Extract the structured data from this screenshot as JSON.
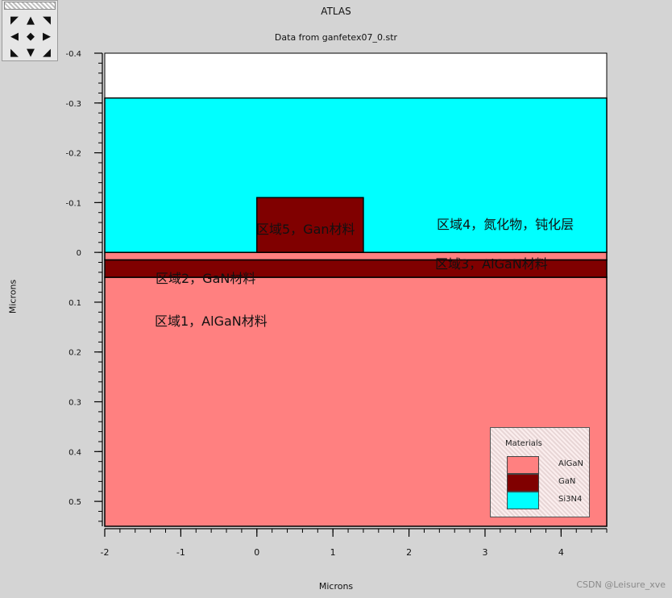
{
  "window": {
    "title": "ATLAS",
    "subtitle": "Data from ganfetex07_0.str"
  },
  "nav_icons": [
    "pan-up-left-icon",
    "pan-up-icon",
    "pan-up-right-icon",
    "pan-left-icon",
    "center-icon",
    "pan-right-icon",
    "pan-down-left-icon",
    "pan-down-icon",
    "pan-down-right-icon"
  ],
  "axes": {
    "xlabel": "Microns",
    "ylabel": "Microns",
    "x_ticks": [
      "-2",
      "-1",
      "0",
      "1",
      "2",
      "3",
      "4"
    ],
    "y_ticks": [
      "-0.4",
      "-0.3",
      "-0.2",
      "-0.1",
      "0",
      "0.1",
      "0.2",
      "0.3",
      "0.4",
      "0.5"
    ]
  },
  "colors": {
    "AlGaN": "#ff8080",
    "GaN": "#800000",
    "Si3N4": "#00ffff",
    "background": "#ffffff"
  },
  "chart_data": {
    "type": "heatmap",
    "xlim": [
      -2,
      4.6
    ],
    "ylim": [
      -0.4,
      0.55
    ],
    "y_inverted": true,
    "regions": [
      {
        "material": "AlGaN",
        "x": [
          -2,
          4.6
        ],
        "y": [
          0.05,
          0.55
        ]
      },
      {
        "material": "GaN",
        "x": [
          -2,
          4.6
        ],
        "y": [
          0.015,
          0.05
        ]
      },
      {
        "material": "AlGaN",
        "x": [
          -2,
          4.6
        ],
        "y": [
          0,
          0.015
        ]
      },
      {
        "material": "Si3N4",
        "x": [
          -2,
          4.6
        ],
        "y": [
          -0.31,
          0
        ]
      },
      {
        "material": "GaN",
        "x": [
          0,
          1.4
        ],
        "y": [
          -0.11,
          0
        ]
      }
    ],
    "legend": {
      "title": "Materials",
      "placement": "bottom-right",
      "entries": [
        {
          "label": "AlGaN",
          "color": "#ff8080"
        },
        {
          "label": "GaN",
          "color": "#800000"
        },
        {
          "label": "Si3N4",
          "color": "#00ffff"
        }
      ]
    }
  },
  "annotations": [
    "区域5，Gan材料",
    "区域4，氮化物，钝化层",
    "区域3，AlGaN材料",
    "区域2，GaN材料",
    "区域1，AlGaN材料"
  ],
  "watermark": "CSDN @Leisure_xve"
}
